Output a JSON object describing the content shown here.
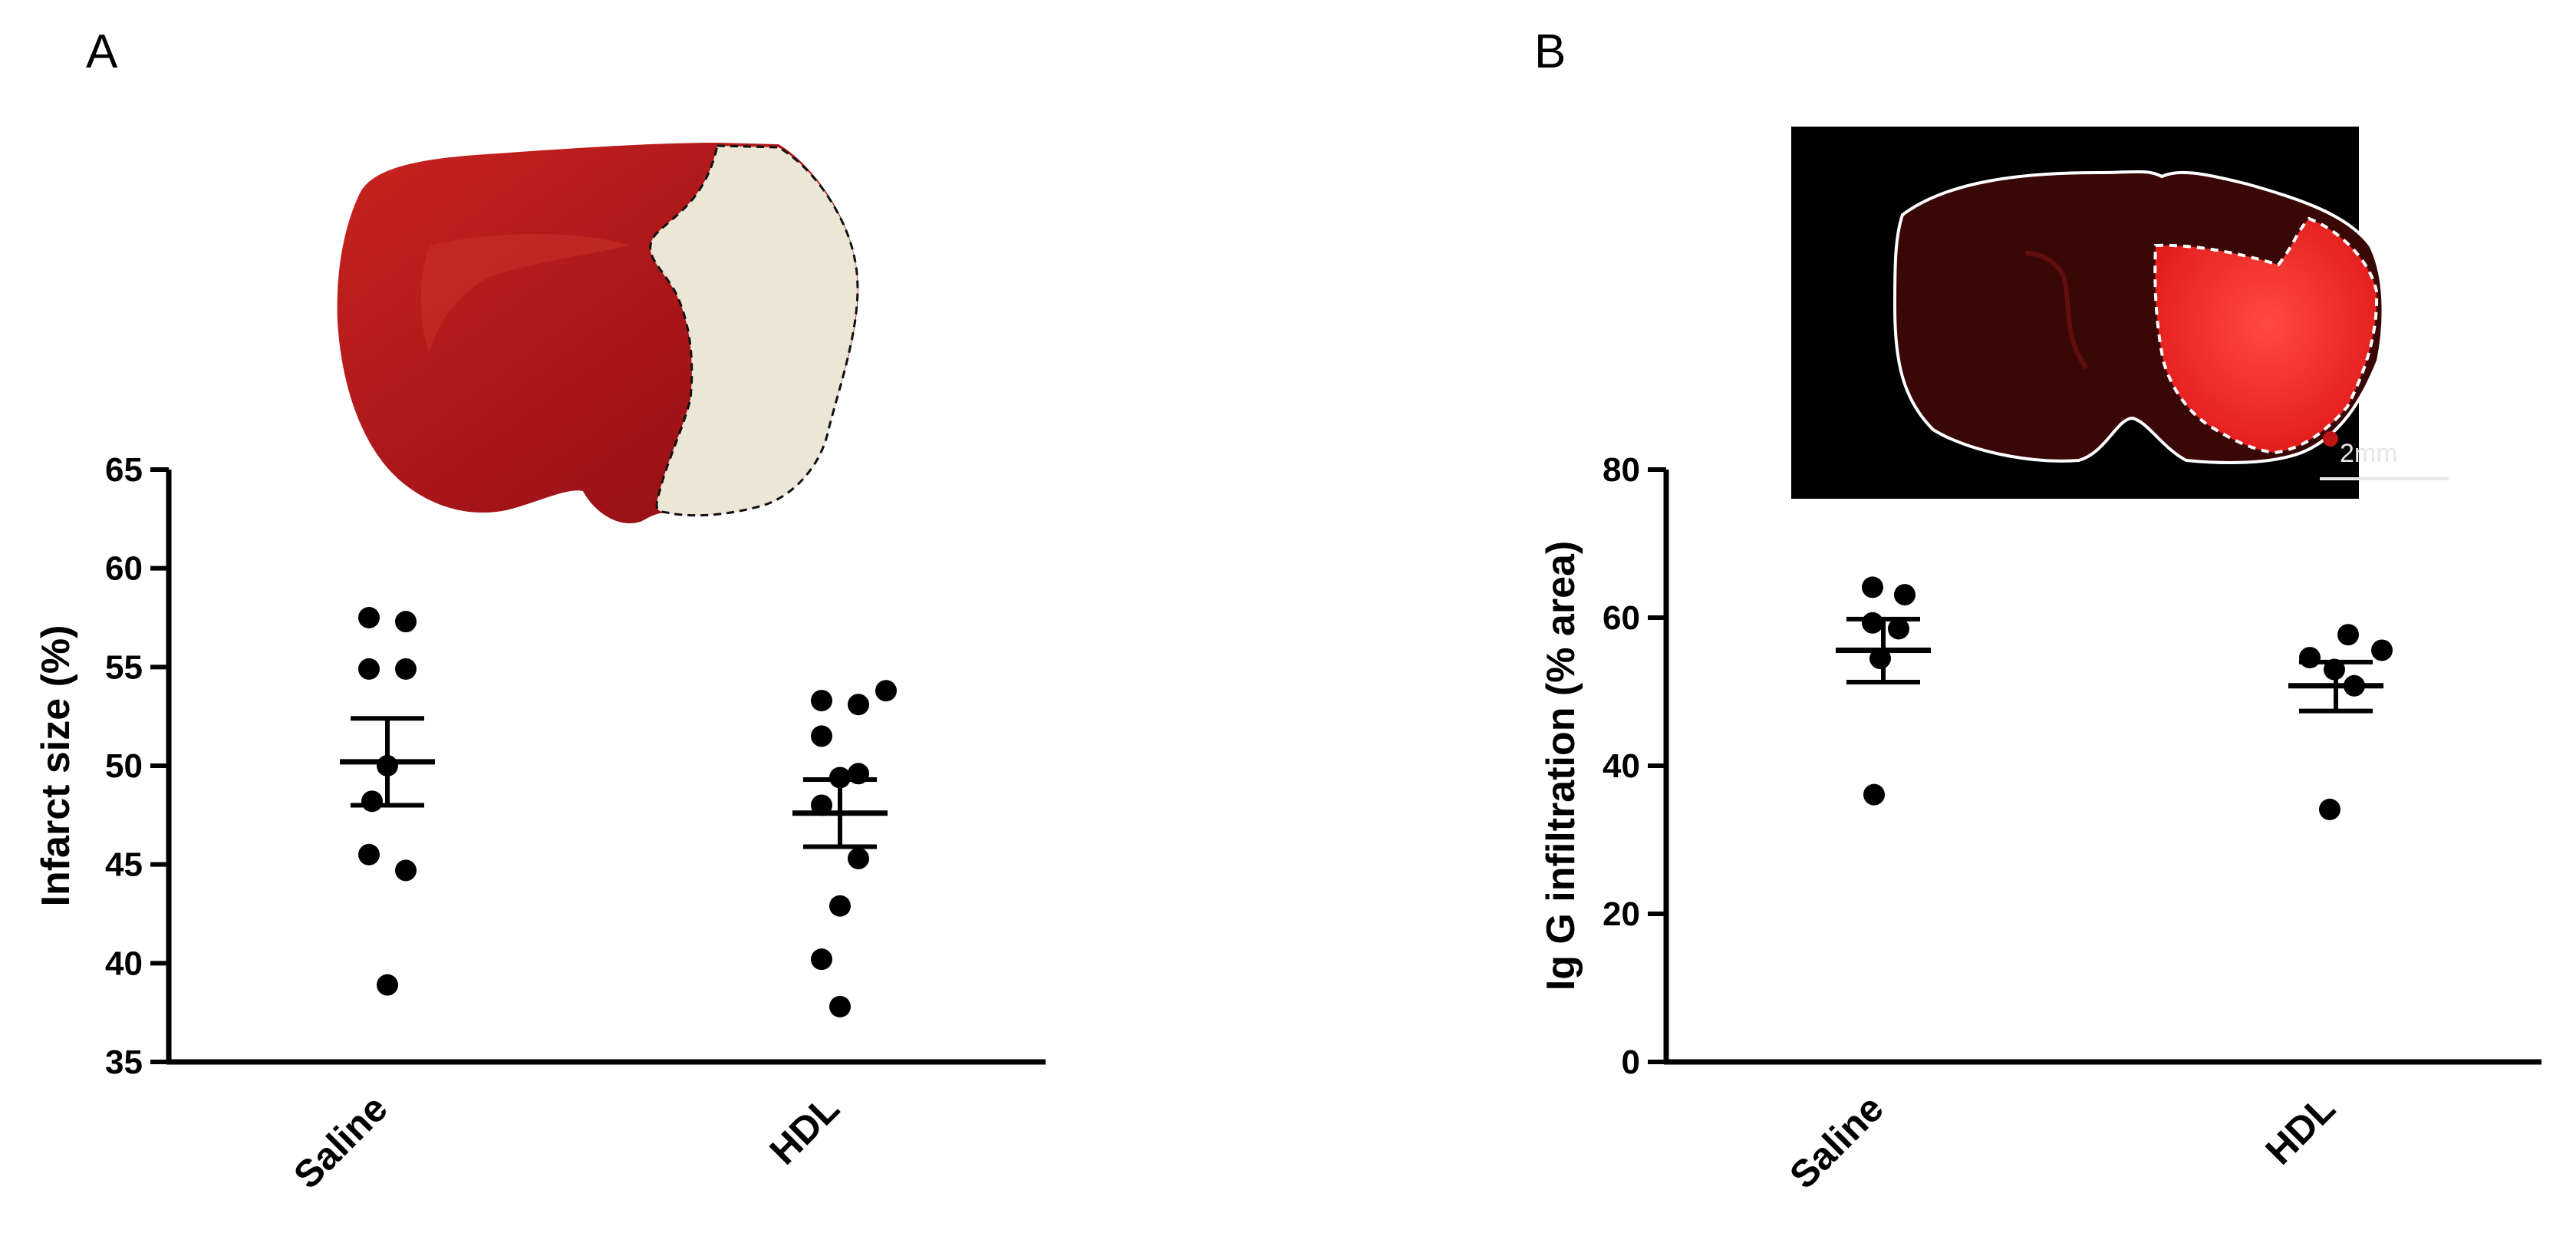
{
  "panels": [
    {
      "letter": "A"
    },
    {
      "letter": "B"
    }
  ],
  "images": {
    "tcc_brain_section": "brain-section-ttc-stain",
    "igg_brain_section": "brain-section-igg-fluorescence",
    "scale_bar_label": "2mm"
  },
  "colors": {
    "tissue_red": "#b3191b",
    "infarct_pale": "#ece6d6",
    "fluorescence_red": "#ff2a2a",
    "dots": "#000000"
  },
  "chart_data": [
    {
      "type": "scatter",
      "panel": "A",
      "title": "",
      "ylabel": "Infarct size (%)",
      "xlabel": "",
      "categories": [
        "Saline",
        "HDL"
      ],
      "ylim": [
        35,
        65
      ],
      "yticks": [
        35,
        40,
        45,
        50,
        55,
        60,
        65
      ],
      "series": [
        {
          "name": "Saline",
          "values": [
            57.5,
            57.3,
            54.9,
            54.9,
            50.0,
            48.2,
            45.5,
            44.7,
            38.9
          ],
          "mean": 50.2,
          "sem_upper": 52.4,
          "sem_lower": 48.0
        },
        {
          "name": "HDL",
          "values": [
            53.3,
            53.1,
            53.8,
            51.5,
            49.6,
            49.4,
            48.0,
            45.3,
            42.9,
            40.2,
            37.8
          ],
          "mean": 47.6,
          "sem_upper": 49.3,
          "sem_lower": 45.9
        }
      ]
    },
    {
      "type": "scatter",
      "panel": "B",
      "title": "",
      "ylabel": "Ig G infiltration (% area)",
      "xlabel": "",
      "categories": [
        "Saline",
        "HDL"
      ],
      "ylim": [
        0,
        80
      ],
      "yticks": [
        0,
        20,
        40,
        60,
        80
      ],
      "series": [
        {
          "name": "Saline",
          "values": [
            64.1,
            63.1,
            59.3,
            58.5,
            54.5,
            36.1
          ],
          "mean": 55.6,
          "sem_upper": 59.8,
          "sem_lower": 51.3
        },
        {
          "name": "HDL",
          "values": [
            57.7,
            55.6,
            54.6,
            53.0,
            50.8,
            34.1
          ],
          "mean": 50.8,
          "sem_upper": 54.0,
          "sem_lower": 47.4
        }
      ]
    }
  ]
}
